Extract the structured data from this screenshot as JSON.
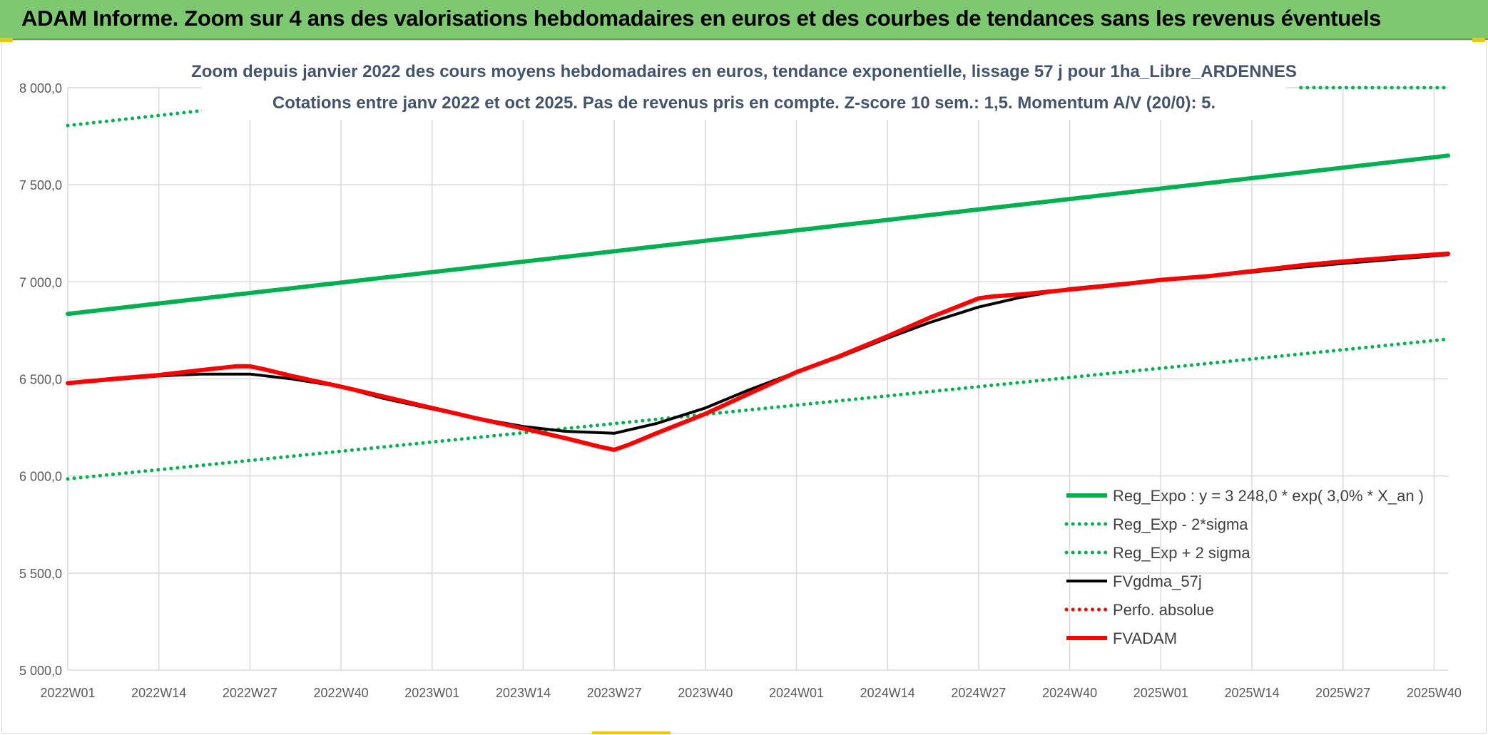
{
  "banner": {
    "title": "ADAM Informe. Zoom sur 4 ans des valorisations hebdomadaires en euros et des courbes de tendances sans les revenus éventuels"
  },
  "colors": {
    "banner_bg": "#7dc870",
    "reg_expo": "#00b050",
    "fvgdma": "#000000",
    "fvadam": "#ff0000",
    "perfo": "#ff0000",
    "grid": "#d9d9d9"
  },
  "chart_data": {
    "type": "line",
    "title": "Zoom depuis janvier 2022 des cours moyens hebdomadaires en euros, tendance exponentielle, lissage 57 j pour 1ha_Libre_ARDENNES",
    "subtitle": "Cotations entre janv 2022 et oct 2025. Pas de revenus pris en compte. Z-score 10 sem.: 1,5. Momentum A/V (20/0): 5.",
    "xlabel": "",
    "ylabel": "",
    "ylim": [
      5000,
      8000
    ],
    "y_ticks": [
      "8 000,0",
      "7 500,0",
      "7 000,0",
      "6 500,0",
      "6 000,0",
      "5 500,0",
      "5 000,0"
    ],
    "y_tick_values": [
      8000,
      7500,
      7000,
      6500,
      6000,
      5500,
      5000
    ],
    "x_range": [
      0,
      197
    ],
    "x_tick_labels": [
      "2022W01",
      "2022W14",
      "2022W27",
      "2022W40",
      "2023W01",
      "2023W14",
      "2023W27",
      "2023W40",
      "2024W01",
      "2024W14",
      "2024W27",
      "2024W40",
      "2025W01",
      "2025W14",
      "2025W27",
      "2025W40"
    ],
    "x_tick_positions": [
      0,
      13,
      26,
      39,
      52,
      65,
      78,
      91,
      104,
      117,
      130,
      143,
      156,
      169,
      182,
      195
    ],
    "grid": true,
    "legend_position": "bottom-right",
    "series": [
      {
        "name": "Reg_Expo : y = 3 248,0 * exp( 3,0% *  X_an )",
        "style": "solid-thick",
        "color": "#00b050",
        "x": [
          0,
          197
        ],
        "y": [
          6835,
          7650
        ]
      },
      {
        "name": "Reg_Exp - 2*sigma",
        "style": "dotted",
        "color": "#00b050",
        "x": [
          0,
          197
        ],
        "y": [
          5985,
          6705
        ]
      },
      {
        "name": "Reg_Exp + 2 sigma",
        "style": "dotted",
        "color": "#00b050",
        "x": [
          0,
          20,
          176,
          197
        ],
        "y": [
          7805,
          7885,
          8000,
          8000
        ],
        "segments": [
          [
            0,
            1
          ],
          [
            2,
            3
          ]
        ]
      },
      {
        "name": "FVgdma_57j",
        "style": "solid",
        "color": "#000000",
        "x": [
          0,
          8,
          13,
          19,
          26,
          32,
          39,
          45,
          52,
          58,
          65,
          71,
          78,
          84,
          91,
          97,
          104,
          110,
          117,
          123,
          130,
          136,
          143,
          150,
          156,
          163,
          169,
          176,
          182,
          189,
          197
        ],
        "y": [
          6478,
          6500,
          6515,
          6525,
          6525,
          6500,
          6460,
          6400,
          6345,
          6300,
          6255,
          6230,
          6220,
          6270,
          6350,
          6440,
          6535,
          6610,
          6710,
          6790,
          6870,
          6920,
          6965,
          6990,
          7010,
          7030,
          7050,
          7075,
          7095,
          7115,
          7140
        ]
      },
      {
        "name": "Perfo. absolue",
        "style": "dotted",
        "color": "#ff0000",
        "x": [],
        "y": []
      },
      {
        "name": "FVADAM",
        "style": "solid-thick",
        "color": "#ff0000",
        "x": [
          0,
          8,
          13,
          19,
          24,
          26,
          28,
          32,
          39,
          45,
          52,
          58,
          65,
          71,
          76,
          78,
          80,
          84,
          91,
          97,
          104,
          110,
          117,
          123,
          130,
          132,
          136,
          143,
          150,
          156,
          163,
          169,
          176,
          182,
          189,
          197
        ],
        "y": [
          6478,
          6505,
          6520,
          6545,
          6565,
          6565,
          6550,
          6515,
          6460,
          6410,
          6350,
          6300,
          6245,
          6195,
          6150,
          6135,
          6160,
          6220,
          6320,
          6420,
          6535,
          6615,
          6720,
          6815,
          6915,
          6925,
          6935,
          6960,
          6985,
          7010,
          7030,
          7055,
          7085,
          7105,
          7125,
          7145
        ]
      }
    ]
  }
}
